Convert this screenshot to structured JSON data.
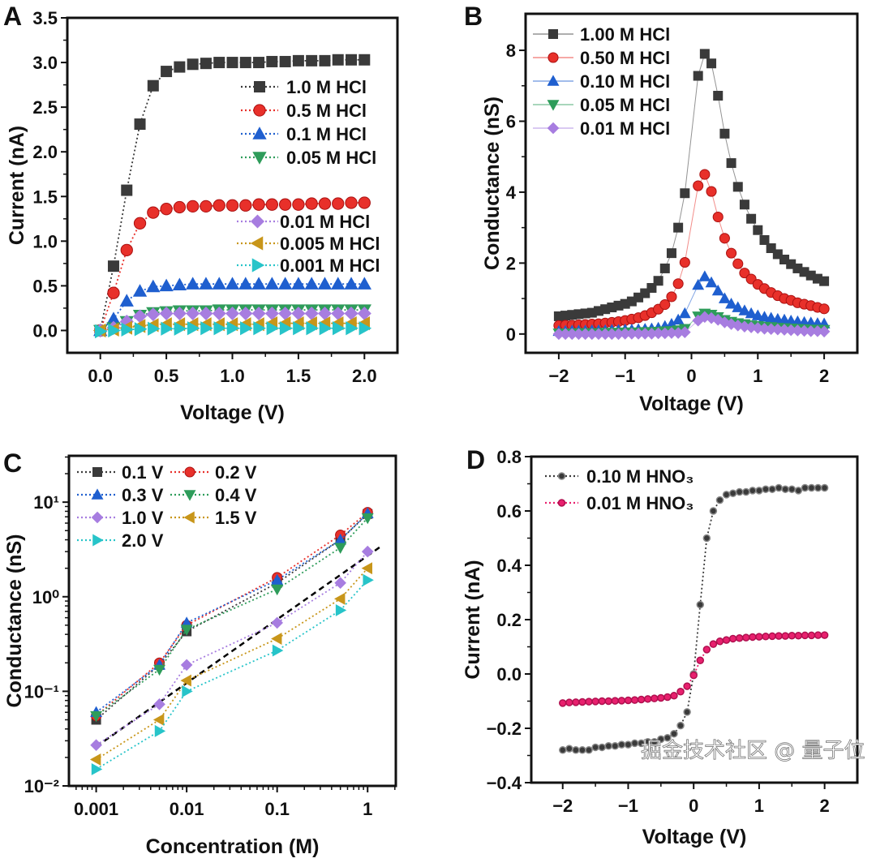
{
  "figure": {
    "watermark": "掘金技术社区 @ 量子位"
  },
  "chart_data": [
    {
      "panel": "A",
      "type": "line",
      "xlabel": "Voltage (V)",
      "ylabel": "Current (nA)",
      "xlim": [
        -0.25,
        2.25
      ],
      "ylim": [
        -0.25,
        3.5
      ],
      "xticks": [
        0,
        0.5,
        1,
        1.5,
        2
      ],
      "xtick_labels": [
        "0.0",
        "0.5",
        "1.0",
        "1.5",
        "2.0"
      ],
      "yticks": [
        0,
        0.5,
        1,
        1.5,
        2,
        2.5,
        3,
        3.5
      ],
      "ytick_labels": [
        "0.0",
        "0.5",
        "1.0",
        "1.5",
        "2.0",
        "2.5",
        "3.0",
        "3.5"
      ],
      "grid": false,
      "legend_placement": "right",
      "line_style": "dotted",
      "x": [
        0,
        0.1,
        0.2,
        0.3,
        0.4,
        0.5,
        0.6,
        0.7,
        0.8,
        0.9,
        1.0,
        1.1,
        1.2,
        1.3,
        1.4,
        1.5,
        1.6,
        1.7,
        1.8,
        1.9,
        2.0
      ],
      "series": [
        {
          "name": "1.0 M HCl",
          "marker": "square",
          "color": "#3a3a3a",
          "values": [
            0,
            0.72,
            1.57,
            2.31,
            2.74,
            2.9,
            2.95,
            2.98,
            2.99,
            3.0,
            3.0,
            3.0,
            3.0,
            3.01,
            3.01,
            3.02,
            3.02,
            3.02,
            3.03,
            3.03,
            3.03
          ]
        },
        {
          "name": "0.5 M HCl",
          "marker": "circle",
          "color": "#e8302a",
          "values": [
            0,
            0.42,
            0.9,
            1.2,
            1.32,
            1.36,
            1.38,
            1.39,
            1.39,
            1.4,
            1.4,
            1.4,
            1.41,
            1.41,
            1.41,
            1.41,
            1.42,
            1.42,
            1.42,
            1.43,
            1.43
          ]
        },
        {
          "name": "0.1 M HCl",
          "marker": "triangle-up",
          "color": "#1f5fcf",
          "values": [
            0,
            0.13,
            0.33,
            0.44,
            0.49,
            0.5,
            0.51,
            0.52,
            0.52,
            0.52,
            0.52,
            0.52,
            0.52,
            0.52,
            0.52,
            0.52,
            0.52,
            0.52,
            0.52,
            0.52,
            0.52
          ]
        },
        {
          "name": "0.05 M HCl",
          "marker": "triangle-down",
          "color": "#2e9c5a",
          "values": [
            0,
            0.03,
            0.1,
            0.17,
            0.2,
            0.21,
            0.22,
            0.22,
            0.22,
            0.23,
            0.23,
            0.23,
            0.23,
            0.23,
            0.23,
            0.23,
            0.23,
            0.23,
            0.23,
            0.23,
            0.23
          ]
        },
        {
          "name": "0.01 M HCl",
          "marker": "diamond",
          "color": "#a77de0",
          "values": [
            0,
            0.03,
            0.1,
            0.16,
            0.18,
            0.19,
            0.19,
            0.19,
            0.19,
            0.19,
            0.19,
            0.19,
            0.19,
            0.19,
            0.19,
            0.19,
            0.19,
            0.19,
            0.19,
            0.19,
            0.19
          ]
        },
        {
          "name": "0.005 M HCl",
          "marker": "triangle-left",
          "color": "#c8961a",
          "values": [
            0,
            0.01,
            0.03,
            0.05,
            0.06,
            0.07,
            0.07,
            0.07,
            0.07,
            0.07,
            0.07,
            0.07,
            0.07,
            0.08,
            0.08,
            0.08,
            0.08,
            0.08,
            0.08,
            0.08,
            0.08
          ]
        },
        {
          "name": "0.001 M HCl",
          "marker": "triangle-right",
          "color": "#27c4c9",
          "values": [
            -0.01,
            0,
            0.01,
            0.015,
            0.02,
            0.02,
            0.02,
            0.025,
            0.025,
            0.025,
            0.025,
            0.025,
            0.025,
            0.025,
            0.025,
            0.025,
            0.025,
            0.025,
            0.025,
            0.025,
            0.025
          ]
        }
      ]
    },
    {
      "panel": "B",
      "type": "line",
      "xlabel": "Voltage (V)",
      "ylabel": "Conductance (nS)",
      "xlim": [
        -2.5,
        2.5
      ],
      "ylim": [
        -0.53,
        9.03
      ],
      "xticks": [
        -2,
        -1,
        0,
        1,
        2
      ],
      "xtick_labels": [
        "−2",
        "−1",
        "0",
        "1",
        "2"
      ],
      "yticks": [
        0,
        2,
        4,
        6,
        8
      ],
      "ytick_labels": [
        "0",
        "2",
        "4",
        "6",
        "8"
      ],
      "grid": false,
      "legend_placement": "top-left",
      "line_style": "solid-thin",
      "x": [
        -2,
        -1.9,
        -1.8,
        -1.7,
        -1.6,
        -1.5,
        -1.4,
        -1.3,
        -1.2,
        -1.1,
        -1.0,
        -0.9,
        -0.8,
        -0.7,
        -0.6,
        -0.5,
        -0.4,
        -0.3,
        -0.2,
        -0.1,
        0,
        0.1,
        0.2,
        0.3,
        0.4,
        0.5,
        0.6,
        0.7,
        0.8,
        0.9,
        1.0,
        1.1,
        1.2,
        1.3,
        1.4,
        1.5,
        1.6,
        1.7,
        1.8,
        1.9,
        2.0
      ],
      "series": [
        {
          "name": "1.00 M HCl",
          "marker": "square",
          "color": "#3a3a3a",
          "values": [
            0.5,
            0.52,
            0.54,
            0.56,
            0.58,
            0.6,
            0.65,
            0.7,
            0.75,
            0.8,
            0.85,
            0.92,
            1.03,
            1.15,
            1.3,
            1.5,
            1.85,
            2.28,
            3.0,
            3.97,
            null,
            7.28,
            7.9,
            7.63,
            6.72,
            5.65,
            4.82,
            4.15,
            3.65,
            3.25,
            2.93,
            2.65,
            2.42,
            2.25,
            2.1,
            1.97,
            1.85,
            1.75,
            1.65,
            1.56,
            1.49
          ]
        },
        {
          "name": "0.50 M HCl",
          "marker": "circle",
          "color": "#e8302a",
          "values": [
            0.24,
            0.25,
            0.25,
            0.26,
            0.27,
            0.28,
            0.29,
            0.31,
            0.33,
            0.35,
            0.38,
            0.42,
            0.46,
            0.52,
            0.6,
            0.7,
            0.83,
            1.05,
            1.42,
            2.02,
            null,
            4.18,
            4.5,
            4.02,
            3.3,
            2.7,
            2.28,
            1.98,
            1.72,
            1.55,
            1.4,
            1.28,
            1.17,
            1.08,
            1.0,
            0.95,
            0.88,
            0.84,
            0.8,
            0.75,
            0.71
          ]
        },
        {
          "name": "0.10 M HCl",
          "marker": "triangle-up",
          "color": "#1f5fcf",
          "values": [
            0.08,
            0.08,
            0.09,
            0.09,
            0.09,
            0.1,
            0.1,
            0.1,
            0.11,
            0.11,
            0.12,
            0.12,
            0.13,
            0.14,
            0.15,
            0.17,
            0.22,
            0.28,
            0.4,
            0.58,
            null,
            1.38,
            1.62,
            1.45,
            1.22,
            1.0,
            0.85,
            0.75,
            0.66,
            0.58,
            0.52,
            0.48,
            0.45,
            0.42,
            0.4,
            0.37,
            0.35,
            0.33,
            0.32,
            0.3,
            0.29
          ]
        },
        {
          "name": "0.05 M HCl",
          "marker": "triangle-down",
          "color": "#2e9c5a",
          "values": [
            0.02,
            0.02,
            0.02,
            0.03,
            0.03,
            0.03,
            0.03,
            0.04,
            0.04,
            0.04,
            0.05,
            0.05,
            0.05,
            0.06,
            0.06,
            0.07,
            0.08,
            0.09,
            0.11,
            0.15,
            null,
            0.5,
            0.58,
            0.55,
            0.48,
            0.4,
            0.35,
            0.31,
            0.28,
            0.25,
            0.23,
            0.21,
            0.2,
            0.18,
            0.17,
            0.16,
            0.15,
            0.14,
            0.13,
            0.13,
            0.12
          ]
        },
        {
          "name": "0.01 M HCl",
          "marker": "diamond",
          "color": "#a77de0",
          "values": [
            0,
            0,
            0,
            0,
            0,
            0,
            0,
            0,
            0,
            0,
            0.01,
            0.01,
            0.01,
            0.01,
            0.01,
            0.02,
            0.02,
            0.03,
            0.03,
            0.05,
            null,
            0.38,
            0.48,
            0.45,
            0.4,
            0.33,
            0.28,
            0.24,
            0.21,
            0.19,
            0.17,
            0.15,
            0.14,
            0.13,
            0.12,
            0.11,
            0.1,
            0.09,
            0.08,
            0.08,
            0.07
          ]
        }
      ]
    },
    {
      "panel": "C",
      "type": "line",
      "xlabel": "Concentration (M)",
      "ylabel": "Conductance (nS)",
      "xscale": "log",
      "yscale": "log",
      "xlim": [
        0.0005,
        2.05
      ],
      "ylim": [
        0.01,
        30.9
      ],
      "xticks": [
        0.001,
        0.01,
        0.1,
        1
      ],
      "xtick_labels": [
        "0.001",
        "0.01",
        "0.1",
        "1"
      ],
      "yticks": [
        0.01,
        0.1,
        1,
        10
      ],
      "ytick_labels": [
        "10⁻²",
        "10⁻¹",
        "10⁰",
        "10¹"
      ],
      "grid": false,
      "legend_placement": "top-left",
      "line_style": "dotted",
      "x": [
        0.001,
        0.005,
        0.01,
        0.1,
        0.5,
        1
      ],
      "series": [
        {
          "name": "0.1 V",
          "marker": "square",
          "color": "#3a3a3a",
          "values": [
            0.05,
            0.19,
            0.43,
            1.4,
            4.0,
            7.5
          ]
        },
        {
          "name": "0.2 V",
          "marker": "circle",
          "color": "#e8302a",
          "values": [
            0.055,
            0.2,
            0.5,
            1.6,
            4.5,
            7.8
          ]
        },
        {
          "name": "0.3 V",
          "marker": "triangle-up",
          "color": "#1f5fcf",
          "values": [
            0.06,
            0.19,
            0.53,
            1.5,
            4.0,
            7.6
          ]
        },
        {
          "name": "0.4 V",
          "marker": "triangle-down",
          "color": "#2e9c5a",
          "values": [
            0.055,
            0.17,
            0.45,
            1.2,
            3.3,
            6.8
          ]
        },
        {
          "name": "1.0 V",
          "marker": "diamond",
          "color": "#a77de0",
          "values": [
            0.027,
            0.073,
            0.19,
            0.53,
            1.4,
            3.0
          ]
        },
        {
          "name": "1.5 V",
          "marker": "triangle-left",
          "color": "#c8961a",
          "values": [
            0.019,
            0.05,
            0.13,
            0.36,
            0.95,
            2.0
          ]
        },
        {
          "name": "2.0 V",
          "marker": "triangle-right",
          "color": "#27c4c9",
          "values": [
            0.015,
            0.038,
            0.1,
            0.27,
            0.72,
            1.5
          ]
        }
      ],
      "fit_line": {
        "style": "dashed",
        "color": "#000000",
        "x": [
          0.001,
          1.4
        ],
        "y": [
          0.026,
          3.4
        ]
      }
    },
    {
      "panel": "D",
      "type": "line",
      "xlabel": "Voltage (V)",
      "ylabel": "Current (nA)",
      "xlim": [
        -2.48,
        2.5
      ],
      "ylim": [
        -0.4,
        0.8
      ],
      "xticks": [
        -2,
        -1,
        0,
        1,
        2
      ],
      "xtick_labels": [
        "−2",
        "−1",
        "0",
        "1",
        "2"
      ],
      "yticks": [
        -0.4,
        -0.2,
        0,
        0.2,
        0.4,
        0.6,
        0.8
      ],
      "ytick_labels": [
        "−0.4",
        "−0.2",
        "0.0",
        "0.2",
        "0.4",
        "0.6",
        "0.8"
      ],
      "grid": false,
      "legend_placement": "top-left",
      "line_style": "dotted",
      "x": [
        -2,
        -1.9,
        -1.8,
        -1.7,
        -1.6,
        -1.5,
        -1.4,
        -1.3,
        -1.2,
        -1.1,
        -1.0,
        -0.9,
        -0.8,
        -0.7,
        -0.6,
        -0.5,
        -0.4,
        -0.3,
        -0.2,
        -0.1,
        0,
        0.1,
        0.2,
        0.3,
        0.4,
        0.5,
        0.6,
        0.7,
        0.8,
        0.9,
        1.0,
        1.1,
        1.2,
        1.3,
        1.4,
        1.5,
        1.6,
        1.7,
        1.8,
        1.9,
        2.0
      ],
      "series": [
        {
          "name": "0.10 M HNO₃",
          "marker": "small-circle",
          "color": "#3a3a3a",
          "values": [
            -0.28,
            -0.275,
            -0.28,
            -0.28,
            -0.28,
            -0.27,
            -0.27,
            -0.265,
            -0.265,
            -0.26,
            -0.26,
            -0.255,
            -0.255,
            -0.25,
            -0.25,
            -0.24,
            -0.235,
            -0.22,
            -0.19,
            -0.14,
            0.0,
            0.255,
            0.5,
            0.6,
            0.64,
            0.66,
            0.665,
            0.67,
            0.67,
            0.675,
            0.675,
            0.68,
            0.68,
            0.685,
            0.68,
            0.68,
            0.675,
            0.685,
            0.685,
            0.685,
            0.685
          ]
        },
        {
          "name": "0.01 M HNO₃",
          "marker": "small-circle",
          "color": "#e8206e",
          "values": [
            -0.107,
            -0.105,
            -0.104,
            -0.103,
            -0.102,
            -0.101,
            -0.1,
            -0.1,
            -0.099,
            -0.098,
            -0.097,
            -0.096,
            -0.094,
            -0.092,
            -0.09,
            -0.088,
            -0.085,
            -0.08,
            -0.065,
            -0.045,
            -0.005,
            0.05,
            0.09,
            0.11,
            0.12,
            0.125,
            0.13,
            0.132,
            0.134,
            0.136,
            0.137,
            0.138,
            0.139,
            0.14,
            0.14,
            0.141,
            0.141,
            0.142,
            0.142,
            0.143,
            0.143
          ]
        }
      ]
    }
  ]
}
